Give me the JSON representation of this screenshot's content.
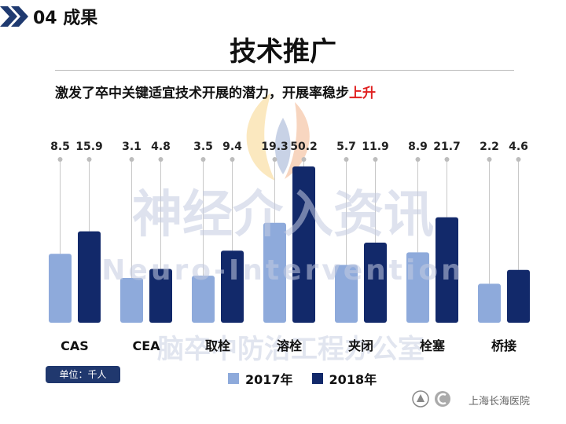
{
  "header": {
    "section_label": "04 成果"
  },
  "page_title": "技术推广",
  "subtitle": {
    "main": "激发了卒中关键适宜技术开展的潜力，开展率稳步",
    "highlight": "上升"
  },
  "watermark": {
    "cn": "神经介入资讯",
    "en": "Neuro-Intervention",
    "office": "脑卒中防治工程办公室"
  },
  "unit_badge": "单位：千人",
  "hospital_name": "上海长海医院",
  "colors": {
    "s2017": "#8eaadb",
    "s2018": "#12296a",
    "accent_red": "#e02020",
    "badge": "#20386e"
  },
  "chart_data": {
    "type": "bar",
    "categories": [
      "CAS",
      "CEA",
      "取栓",
      "溶栓",
      "夹闭",
      "栓塞",
      "桥接"
    ],
    "series": [
      {
        "name": "2017年",
        "values": [
          8.5,
          3.1,
          3.5,
          19.3,
          5.7,
          8.9,
          2.2
        ]
      },
      {
        "name": "2018年",
        "values": [
          15.9,
          4.8,
          9.4,
          50.2,
          11.9,
          21.7,
          4.6
        ]
      }
    ],
    "value_labels": [
      [
        "8.5",
        "3.1",
        "3.5",
        "19.3",
        "5.7",
        "8.9",
        "2.2"
      ],
      [
        "15.9",
        "4.8",
        "9.4",
        "50.2",
        "11.9",
        "21.7",
        "4.6"
      ]
    ],
    "unit": "千人",
    "legend_position": "bottom",
    "scale": "non-linear (values not to scale)"
  }
}
